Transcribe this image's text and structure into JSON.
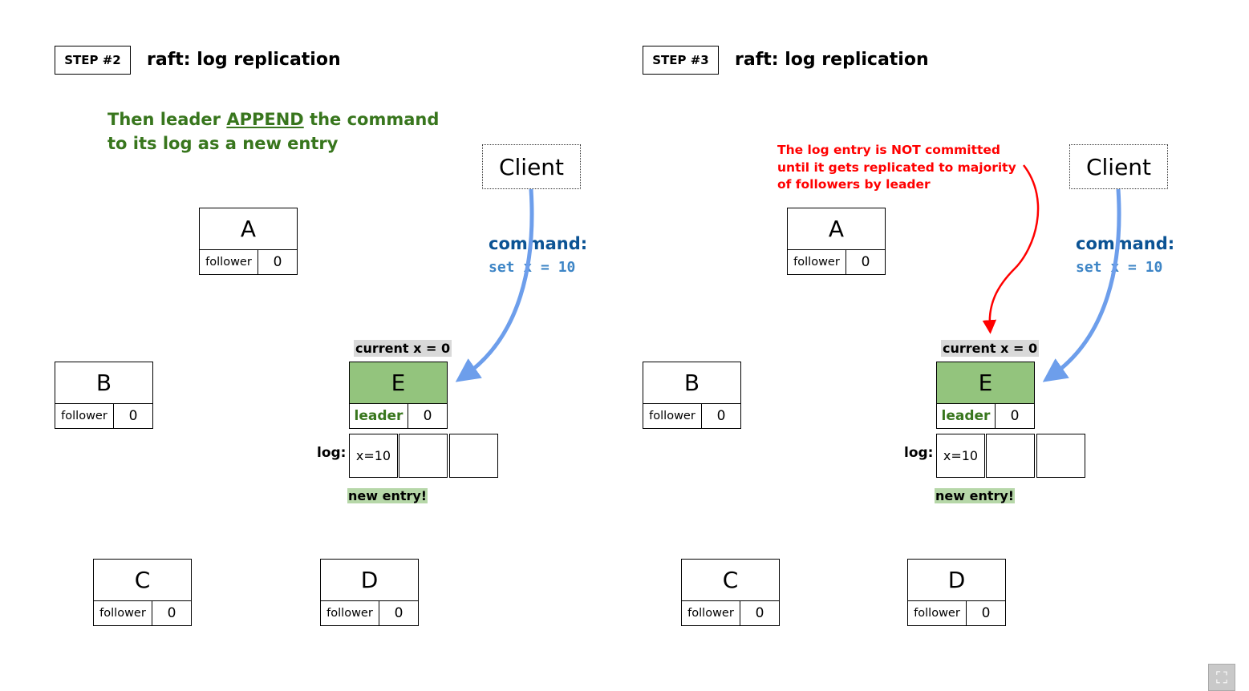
{
  "panels": [
    {
      "step_label": "STEP #2",
      "title": "raft: log replication",
      "intro": {
        "before": "Then leader ",
        "emphasis": "APPEND",
        "after": " the command",
        "line2": "to its log as a new entry"
      },
      "client": "Client",
      "command": {
        "label": "command:",
        "code": "set x = 10"
      },
      "nodes": {
        "a": {
          "name": "A",
          "role": "follower",
          "term": "0"
        },
        "b": {
          "name": "B",
          "role": "follower",
          "term": "0"
        },
        "c": {
          "name": "C",
          "role": "follower",
          "term": "0"
        },
        "d": {
          "name": "D",
          "role": "follower",
          "term": "0"
        },
        "e": {
          "name": "E",
          "role": "leader",
          "term": "0"
        }
      },
      "current_x": "current x = 0",
      "log_label": "log:",
      "log_entries": [
        "x=10",
        "",
        ""
      ],
      "new_entry": "new entry!"
    },
    {
      "step_label": "STEP #3",
      "title": "raft: log replication",
      "note": [
        "The log entry is NOT committed",
        "until it gets replicated to majority",
        "of followers by leader"
      ],
      "client": "Client",
      "command": {
        "label": "command:",
        "code": "set x = 10"
      },
      "nodes": {
        "a": {
          "name": "A",
          "role": "follower",
          "term": "0"
        },
        "b": {
          "name": "B",
          "role": "follower",
          "term": "0"
        },
        "c": {
          "name": "C",
          "role": "follower",
          "term": "0"
        },
        "d": {
          "name": "D",
          "role": "follower",
          "term": "0"
        },
        "e": {
          "name": "E",
          "role": "leader",
          "term": "0"
        }
      },
      "current_x": "current x = 0",
      "log_label": "log:",
      "log_entries": [
        "x=10",
        "",
        ""
      ],
      "new_entry": "new entry!"
    }
  ],
  "colors": {
    "leader_fill": "#93c47d",
    "leader_text": "#38761d",
    "command_label": "#0b5394",
    "command_code": "#3d85c6",
    "arrow_blue": "#6d9eeb",
    "note_red": "#ff0000",
    "new_entry_bg": "#b6d7a8",
    "current_x_bg": "#d9d9d9"
  },
  "icons": {
    "corner": "fullscreen-icon"
  }
}
